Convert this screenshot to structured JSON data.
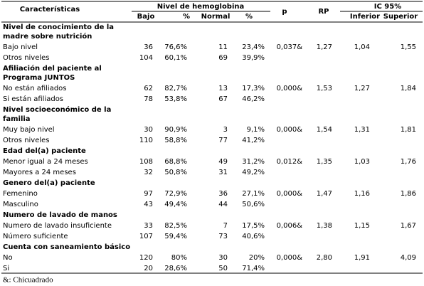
{
  "header": {
    "characteristics": "Características",
    "hemoglobin": "Nivel de hemoglobina",
    "p": "p",
    "rp": "RP",
    "ic": "IC 95%",
    "low": "Bajo",
    "pct": "%",
    "normal": "Normal",
    "pct2": "%",
    "lower": "Inferior",
    "upper": "Superior"
  },
  "groups": [
    {
      "title": [
        "Nivel de conocimiento de la",
        "madre sobre nutrición"
      ],
      "stats": [
        "0,037&",
        "1,27",
        "1,04",
        "1,55"
      ],
      "rows": [
        [
          "Bajo nivel",
          "36",
          "76,6%",
          "11",
          "23,4%"
        ],
        [
          "Otros niveles",
          "104",
          "60,1%",
          "69",
          "39,9%"
        ]
      ]
    },
    {
      "title": [
        "Afiliación del paciente al",
        "Programa JUNTOS"
      ],
      "stats": [
        "0,000&",
        "1,53",
        "1,27",
        "1,84"
      ],
      "rows": [
        [
          "No están afiliados",
          "62",
          "82,7%",
          "13",
          "17,3%"
        ],
        [
          "Si están afiliados",
          "78",
          "53,8%",
          "67",
          "46,2%"
        ]
      ]
    },
    {
      "title": [
        "Nivel socioeconómico de la",
        "familia"
      ],
      "stats": [
        "0,000&",
        "1,54",
        "1,31",
        "1,81"
      ],
      "rows": [
        [
          "Muy bajo nivel",
          "30",
          "90,9%",
          "3",
          "9,1%"
        ],
        [
          "Otros niveles",
          "110",
          "58,8%",
          "77",
          "41,2%"
        ]
      ]
    },
    {
      "title": [
        "Edad del(a) paciente"
      ],
      "stats": [
        "0,012&",
        "1,35",
        "1,03",
        "1,76"
      ],
      "rows": [
        [
          "Menor igual a 24 meses",
          "108",
          "68,8%",
          "49",
          "31,2%"
        ],
        [
          "Mayores a 24 meses",
          "32",
          "50,8%",
          "31",
          "49,2%"
        ]
      ]
    },
    {
      "title": [
        "Genero del(a) paciente"
      ],
      "stats": [
        "0,000&",
        "1,47",
        "1,16",
        "1,86"
      ],
      "rows": [
        [
          "Femenino",
          "97",
          "72,9%",
          "36",
          "27,1%"
        ],
        [
          "Masculino",
          "43",
          "49,4%",
          "44",
          "50,6%"
        ]
      ]
    },
    {
      "title": [
        "Numero de lavado de manos"
      ],
      "stats": [
        "0,006&",
        "1,38",
        "1,15",
        "1,67"
      ],
      "rows": [
        [
          "Numero de lavado insuficiente",
          "33",
          "82,5%",
          "7",
          "17,5%"
        ],
        [
          "Número suficiente",
          "107",
          "59,4%",
          "73",
          "40,6%"
        ]
      ]
    },
    {
      "title": [
        "Cuenta con saneamiento básico"
      ],
      "stats": [
        "0,000&",
        "2,80",
        "1,91",
        "4,09"
      ],
      "rows": [
        [
          "No",
          "120",
          "80%",
          "30",
          "20%"
        ],
        [
          "Si",
          "20",
          "28,6%",
          "50",
          "71,4%"
        ]
      ]
    }
  ],
  "footnote": "&: Chicuadrado"
}
